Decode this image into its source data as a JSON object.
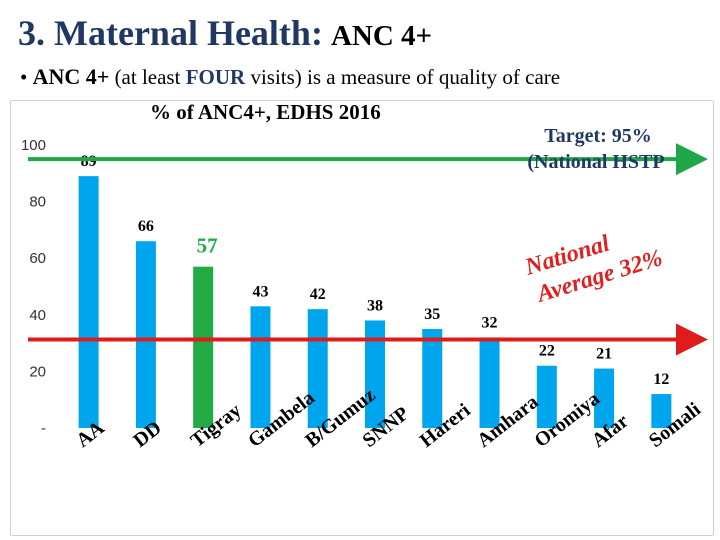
{
  "slide": {
    "title": "3. Maternal Health:",
    "title_suffix": "ANC 4+",
    "bullet_char": "•",
    "bullet_strong": "ANC 4+",
    "bullet_pre": "(at least",
    "bullet_highlight": "FOUR",
    "bullet_post": "visits) is a measure of quality of care"
  },
  "chart_data": {
    "type": "bar",
    "title": "% of ANC4+, EDHS 2016",
    "categories": [
      "AA",
      "DD",
      "Tigray",
      "Gambela",
      "B/Gumuz",
      "SNNP",
      "Hareri",
      "Amhara",
      "Oromiya",
      "Afar",
      "Somali"
    ],
    "values": [
      89,
      66,
      57,
      43,
      42,
      38,
      35,
      32,
      22,
      21,
      12
    ],
    "value_labels": [
      "89",
      "66",
      "57",
      "43",
      "42",
      "38",
      "35",
      "32",
      "22",
      "21",
      "12"
    ],
    "highlight_index": 2,
    "ylim": [
      0,
      100
    ],
    "yticks": [
      0,
      20,
      40,
      60,
      80,
      100
    ],
    "ytick_labels": [
      "-",
      "20",
      "40",
      "60",
      "80",
      "100"
    ],
    "xlabel": "",
    "ylabel": "",
    "grid": false,
    "reference_lines": [
      {
        "value": 95,
        "label_line1": "Target: 95%",
        "label_line2": "(National HSTP",
        "color": "#1fa64a"
      },
      {
        "value": 32,
        "label_line1": "National",
        "label_line2": "Average 32%",
        "color": "#e01b1b"
      }
    ],
    "colors": {
      "bar": "#00a6ed",
      "highlight_bar": "#22aa44"
    }
  }
}
